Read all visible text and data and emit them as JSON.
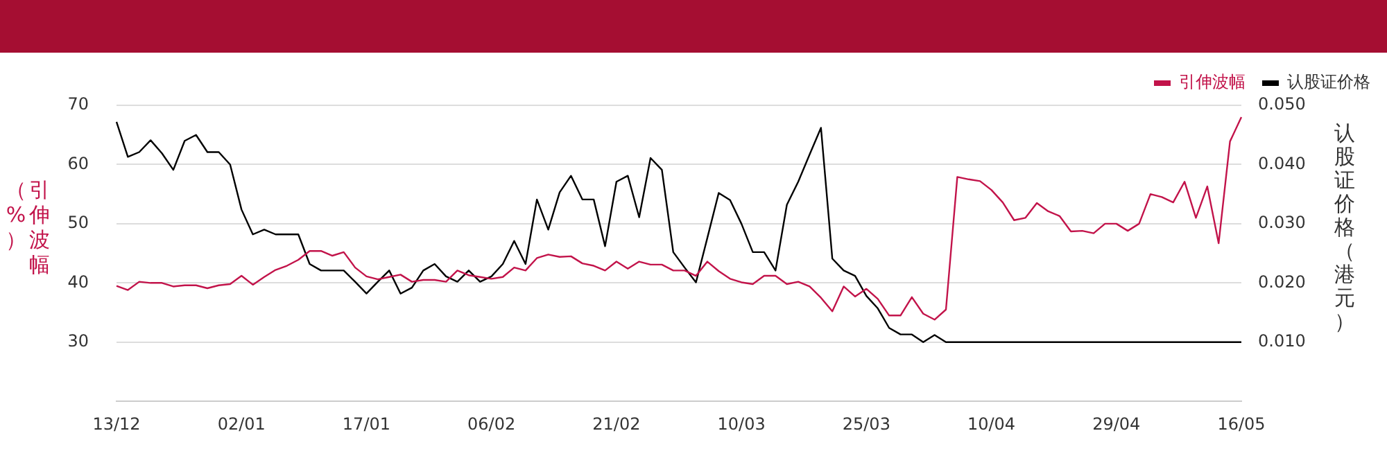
{
  "chart_data": {
    "type": "line",
    "ylabel": "引伸波幅（%）",
    "y2label": "认股证价格（港元）",
    "categories": [
      "13/12",
      null,
      null,
      null,
      null,
      null,
      null,
      null,
      null,
      null,
      null,
      "02/01",
      null,
      null,
      null,
      null,
      null,
      null,
      null,
      null,
      null,
      null,
      "17/01",
      null,
      null,
      null,
      null,
      null,
      null,
      null,
      null,
      null,
      null,
      "06/02",
      null,
      null,
      null,
      null,
      null,
      null,
      null,
      null,
      null,
      null,
      "21/02",
      null,
      null,
      null,
      null,
      null,
      null,
      null,
      null,
      null,
      null,
      "10/03",
      null,
      null,
      null,
      null,
      null,
      null,
      null,
      null,
      null,
      null,
      "25/03",
      null,
      null,
      null,
      null,
      null,
      null,
      null,
      null,
      null,
      null,
      "10/04",
      null,
      null,
      null,
      null,
      null,
      null,
      null,
      null,
      null,
      null,
      "29/04",
      null,
      null,
      null,
      null,
      null,
      null,
      null,
      null,
      null,
      null,
      "16/05"
    ],
    "series": [
      {
        "name": "引伸波幅",
        "color": "#c2134a",
        "values": [
          39.5,
          38.8,
          40.2,
          40.0,
          40.0,
          39.4,
          39.6,
          39.6,
          39.1,
          39.6,
          39.8,
          41.2,
          39.7,
          41.0,
          42.2,
          42.9,
          43.9,
          45.4,
          45.4,
          44.6,
          45.2,
          42.6,
          41.1,
          40.6,
          41.0,
          41.4,
          40.2,
          40.5,
          40.5,
          40.2,
          42.1,
          41.3,
          41.0,
          40.7,
          41.0,
          42.6,
          42.1,
          44.2,
          44.8,
          44.4,
          44.5,
          43.3,
          42.9,
          42.1,
          43.6,
          42.4,
          43.6,
          43.1,
          43.1,
          42.1,
          42.1,
          41.2,
          43.6,
          42.0,
          40.7,
          40.1,
          39.8,
          41.2,
          41.2,
          39.8,
          40.2,
          39.4,
          37.5,
          35.2,
          39.4,
          37.7,
          39.0,
          37.3,
          34.5,
          34.5,
          37.6,
          34.8,
          33.8,
          35.5,
          57.9,
          57.5,
          57.2,
          55.7,
          53.6,
          50.6,
          51.0,
          53.5,
          52.1,
          51.3,
          48.7,
          48.8,
          48.4,
          50.0,
          50.0,
          48.8,
          50.0,
          55.0,
          54.5,
          53.6,
          57.1,
          51.0,
          56.3,
          46.7,
          63.9,
          68.0
        ]
      },
      {
        "name": "认股证价格",
        "color": "#000000",
        "axis": "y2",
        "values": [
          0.0472,
          0.0413,
          0.0421,
          0.0441,
          0.0419,
          0.0391,
          0.044,
          0.045,
          0.0421,
          0.0421,
          0.04,
          0.0324,
          0.0282,
          0.029,
          0.0282,
          0.0282,
          0.0282,
          0.0232,
          0.0221,
          0.0221,
          0.0221,
          0.0202,
          0.0182,
          0.0202,
          0.0221,
          0.0182,
          0.0192,
          0.0221,
          0.0232,
          0.0211,
          0.0202,
          0.0221,
          0.0202,
          0.0211,
          0.0232,
          0.0271,
          0.0232,
          0.0341,
          0.029,
          0.0353,
          0.0381,
          0.0341,
          0.0341,
          0.0262,
          0.0371,
          0.0381,
          0.0311,
          0.0411,
          0.0391,
          0.0252,
          0.0226,
          0.0201,
          0.0276,
          0.0352,
          0.034,
          0.03,
          0.0252,
          0.0252,
          0.0221,
          0.0332,
          0.0371,
          0.0417,
          0.0462,
          0.0241,
          0.0221,
          0.0212,
          0.0178,
          0.0157,
          0.0124,
          0.0113,
          0.0113,
          0.01,
          0.0112,
          0.01,
          0.01,
          0.01,
          0.01,
          0.01,
          0.01,
          0.01,
          0.01,
          0.01,
          0.01,
          0.01,
          0.01,
          0.01,
          0.01,
          0.01,
          0.01,
          0.01,
          0.01,
          0.01,
          0.01,
          0.01,
          0.01,
          0.01,
          0.01,
          0.01,
          0.01,
          0.01
        ]
      }
    ],
    "ylim": [
      20,
      70
    ],
    "yticks": [
      30,
      40,
      50,
      60,
      70
    ],
    "y2lim": [
      0,
      0.05
    ],
    "y2ticks": [
      {
        "value": 0.01,
        "label": "0.010"
      },
      {
        "value": 0.02,
        "label": "0.020"
      },
      {
        "value": 0.03,
        "label": "0.030"
      },
      {
        "value": 0.04,
        "label": "0.040"
      },
      {
        "value": 0.05,
        "label": "0.050"
      }
    ],
    "grid": "y",
    "legend": "top right",
    "marker": "none",
    "line_style": "solid"
  }
}
